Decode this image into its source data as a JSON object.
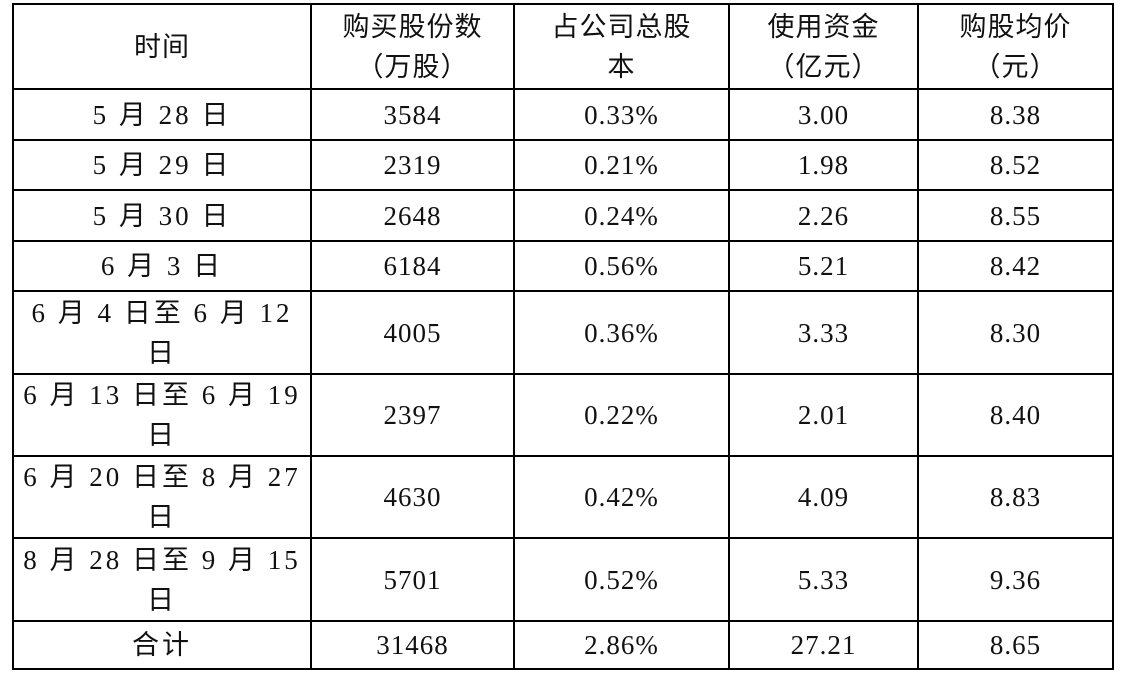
{
  "table": {
    "header": [
      [
        "时间"
      ],
      [
        "购买股份数",
        "（万股）"
      ],
      [
        "占公司总股",
        "本"
      ],
      [
        "使用资金",
        "（亿元）"
      ],
      [
        "购股均价",
        "（元）"
      ]
    ],
    "rows": [
      [
        "5 月 28 日",
        "3584",
        "0.33%",
        "3.00",
        "8.38"
      ],
      [
        "5 月 29 日",
        "2319",
        "0.21%",
        "1.98",
        "8.52"
      ],
      [
        "5 月 30 日",
        "2648",
        "0.24%",
        "2.26",
        "8.55"
      ],
      [
        "6 月 3 日",
        "6184",
        "0.56%",
        "5.21",
        "8.42"
      ],
      [
        "6 月 4 日至 6 月 12 日",
        "4005",
        "0.36%",
        "3.33",
        "8.30"
      ],
      [
        "6 月 13 日至 6 月 19 日",
        "2397",
        "0.22%",
        "2.01",
        "8.40"
      ],
      [
        "6 月 20 日至 8 月 27 日",
        "4630",
        "0.42%",
        "4.09",
        "8.83"
      ],
      [
        "8 月 28 日至 9 月 15 日",
        "5701",
        "0.52%",
        "5.33",
        "9.36"
      ],
      [
        "合计",
        "31468",
        "2.86%",
        "27.21",
        "8.65"
      ]
    ]
  }
}
